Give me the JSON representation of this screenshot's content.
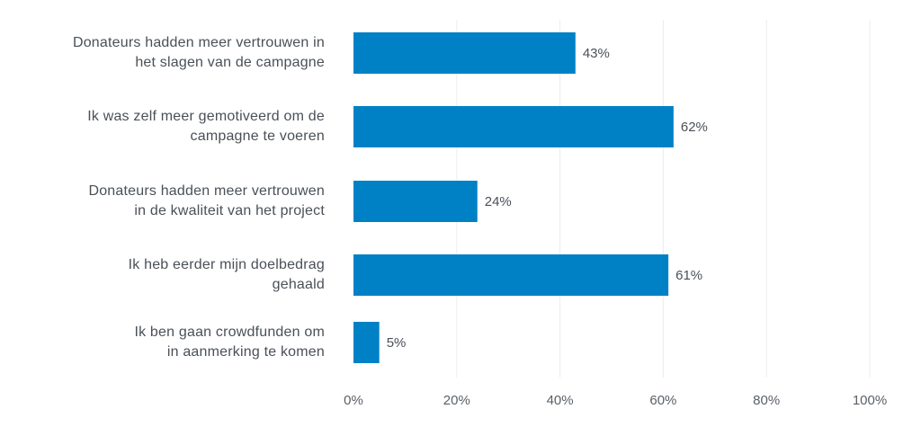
{
  "chart_data": {
    "type": "bar",
    "orientation": "horizontal",
    "categories": [
      [
        "Donateurs hadden meer vertrouwen in",
        "het slagen van de campagne"
      ],
      [
        "Ik was zelf meer gemotiveerd om de",
        "campagne te voeren"
      ],
      [
        "Donateurs hadden meer vertrouwen",
        "in de kwaliteit van het project"
      ],
      [
        "Ik heb eerder mijn doelbedrag",
        "gehaald"
      ],
      [
        "Ik ben gaan crowdfunden om",
        "in aanmerking te komen"
      ]
    ],
    "values": [
      43,
      62,
      24,
      61,
      5
    ],
    "value_labels": [
      "43%",
      "62%",
      "24%",
      "61%",
      "5%"
    ],
    "xlim": [
      0,
      100
    ],
    "xticks": [
      0,
      20,
      40,
      60,
      80,
      100
    ],
    "xtick_labels": [
      "0%",
      "20%",
      "40%",
      "60%",
      "80%",
      "100%"
    ],
    "grid": "vertical",
    "bar_color": "#0081c6",
    "title": "",
    "xlabel": "",
    "ylabel": ""
  }
}
